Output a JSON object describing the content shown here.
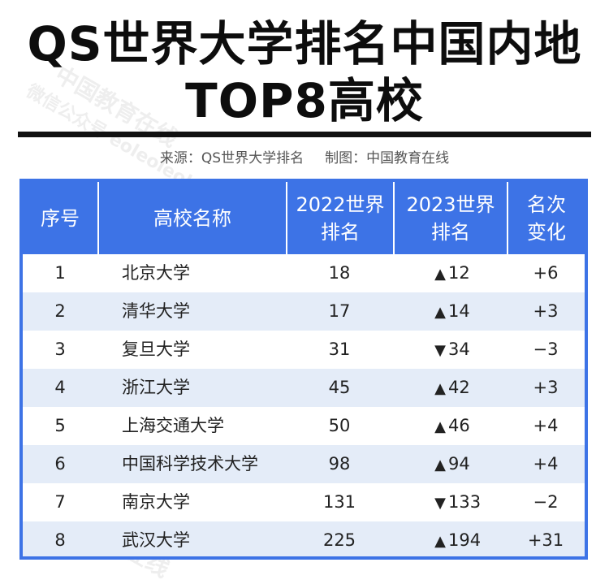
{
  "title": {
    "line1": "QS世界大学排名中国内地",
    "line2": "TOP8高校"
  },
  "source": {
    "origin": "来源：QS世界大学排名",
    "producer": "制图：中国教育在线"
  },
  "watermark": {
    "brand": "中国教育在线",
    "account": "微信公众号 eoleoleol"
  },
  "table": {
    "headers": {
      "rank": "序号",
      "school": "高校名称",
      "y2022_line1": "2022世界",
      "y2022_line2": "排名",
      "y2023_line1": "2023世界",
      "y2023_line2": "排名",
      "change_line1": "名次",
      "change_line2": "变化"
    },
    "rows": [
      {
        "no": "1",
        "school": "北京大学",
        "r2022": "18",
        "arrow": "▲",
        "r2023": "12",
        "change": "+6"
      },
      {
        "no": "2",
        "school": "清华大学",
        "r2022": "17",
        "arrow": "▲",
        "r2023": "14",
        "change": "+3"
      },
      {
        "no": "3",
        "school": "复旦大学",
        "r2022": "31",
        "arrow": "▼",
        "r2023": "34",
        "change": "−3"
      },
      {
        "no": "4",
        "school": "浙江大学",
        "r2022": "45",
        "arrow": "▲",
        "r2023": "42",
        "change": "+3"
      },
      {
        "no": "5",
        "school": "上海交通大学",
        "r2022": "50",
        "arrow": "▲",
        "r2023": "46",
        "change": "+4"
      },
      {
        "no": "6",
        "school": "中国科学技术大学",
        "r2022": "98",
        "arrow": "▲",
        "r2023": "94",
        "change": "+4"
      },
      {
        "no": "7",
        "school": "南京大学",
        "r2022": "131",
        "arrow": "▼",
        "r2023": "133",
        "change": "−2"
      },
      {
        "no": "8",
        "school": "武汉大学",
        "r2022": "225",
        "arrow": "▲",
        "r2023": "194",
        "change": "+31"
      }
    ]
  },
  "colors": {
    "header": "#3d73e6",
    "stripe": "#e4ecf8",
    "text": "#222222"
  }
}
